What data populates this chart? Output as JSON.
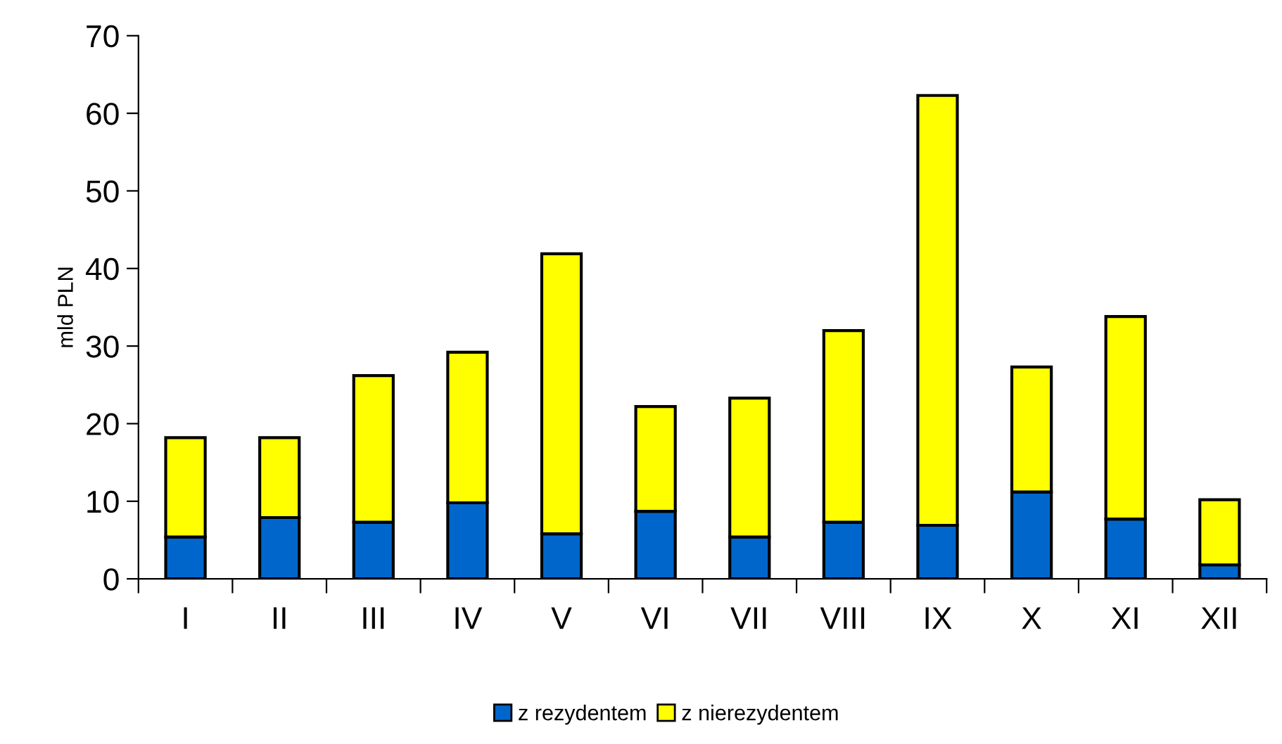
{
  "chart_data": {
    "type": "bar",
    "stacked": true,
    "ylabel": "mld PLN",
    "categories": [
      "I",
      "II",
      "III",
      "IV",
      "V",
      "VI",
      "VII",
      "VIII",
      "IX",
      "X",
      "XI",
      "XII"
    ],
    "series": [
      {
        "name": "z rezydentem",
        "color": "#0066cc",
        "values": [
          5.4,
          7.9,
          7.3,
          9.8,
          5.8,
          8.7,
          5.4,
          7.3,
          6.9,
          11.2,
          7.7,
          1.8
        ]
      },
      {
        "name": "z nierezydentem",
        "color": "#ffff00",
        "values": [
          12.8,
          10.3,
          18.9,
          19.4,
          36.1,
          13.5,
          17.9,
          24.7,
          55.4,
          16.1,
          26.1,
          8.4
        ]
      }
    ],
    "ylim": [
      0,
      70
    ],
    "yticks": [
      0,
      10,
      20,
      30,
      40,
      50,
      60,
      70
    ],
    "grid": false,
    "legend": "bottom"
  }
}
